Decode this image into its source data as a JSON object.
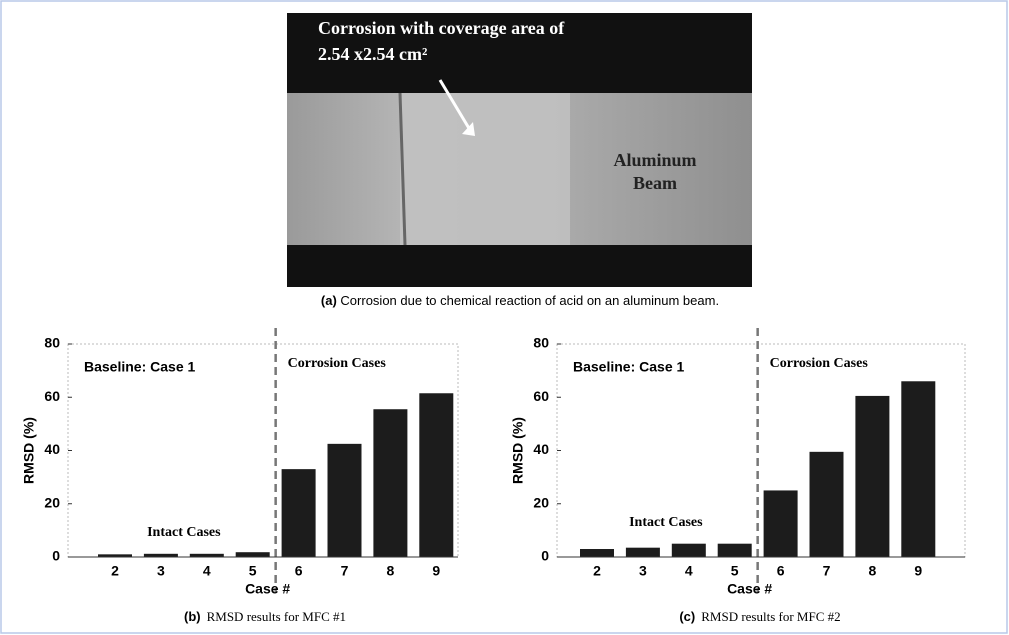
{
  "photo": {
    "annotation_line1": "Corrosion with coverage area of",
    "annotation_line2": "2.54 x2.54 cm²",
    "label_line1": "Aluminum",
    "label_line2": "Beam",
    "caption_label": "(a)",
    "caption": "Corrosion due to chemical reaction of acid on an aluminum beam."
  },
  "chart_data": [
    {
      "type": "bar",
      "caption_label": "(b)",
      "caption": "RMSD results for MFC #1",
      "x_label": "Case #",
      "y_label": "RMSD (%)",
      "annotations": [
        "Baseline: Case 1",
        "Intact Cases",
        "Corrosion Cases"
      ],
      "categories": [
        "2",
        "3",
        "4",
        "5",
        "6",
        "7",
        "8",
        "9"
      ],
      "values": [
        1,
        1.2,
        1.2,
        1.8,
        33,
        42.5,
        55.5,
        61.5
      ],
      "color": "#1c1c1c",
      "ylim": [
        0,
        80
      ],
      "yticks": [
        0,
        20,
        40,
        60,
        80
      ]
    },
    {
      "type": "bar",
      "caption_label": "(c)",
      "caption": "RMSD results for MFC #2",
      "x_label": "Case #",
      "y_label": "RMSD (%)",
      "annotations": [
        "Baseline: Case 1",
        "Intact Cases",
        "Corrosion Cases"
      ],
      "categories": [
        "2",
        "3",
        "4",
        "5",
        "6",
        "7",
        "8",
        "9"
      ],
      "values": [
        3,
        3.5,
        5,
        5,
        25,
        39.5,
        60.5,
        66
      ],
      "color": "#1c1c1c",
      "ylim": [
        0,
        80
      ],
      "yticks": [
        0,
        20,
        40,
        60,
        80
      ]
    }
  ]
}
